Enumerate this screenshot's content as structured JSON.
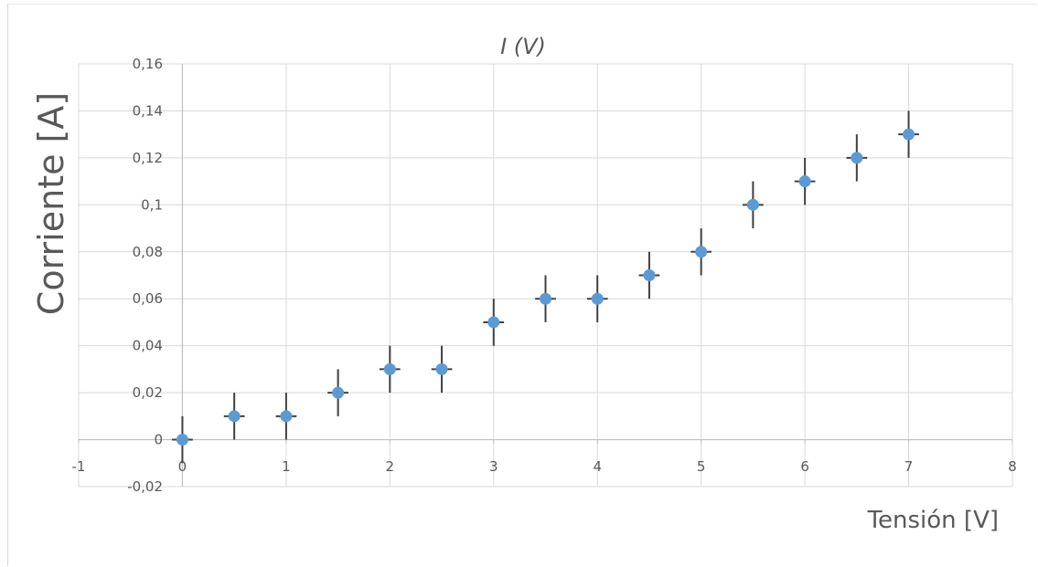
{
  "chart_data": {
    "type": "scatter",
    "title": "I (V)",
    "xlabel": "Tensión [V]",
    "ylabel": "Corriente [A]",
    "xlim": [
      -1,
      8
    ],
    "ylim": [
      -0.02,
      0.16
    ],
    "grid": true,
    "legend": "none",
    "x_ticks": [
      "-1",
      "0",
      "1",
      "2",
      "3",
      "4",
      "5",
      "6",
      "7",
      "8"
    ],
    "y_ticks": [
      "-0,02",
      "0",
      "0,02",
      "0,04",
      "0,06",
      "0,08",
      "0,1",
      "0,12",
      "0,14",
      "0,16"
    ],
    "series": [
      {
        "x": [
          0,
          0.5,
          1,
          1.5,
          2,
          2.5,
          3,
          3.5,
          4,
          4.5,
          5,
          5.5,
          6,
          6.5,
          7
        ],
        "y": [
          0,
          0.01,
          0.01,
          0.02,
          0.03,
          0.03,
          0.05,
          0.06,
          0.06,
          0.07,
          0.08,
          0.1,
          0.11,
          0.12,
          0.13
        ],
        "y_error": 0.01,
        "x_error": 0.1,
        "color": "#5b9bd5"
      }
    ],
    "errorbar_color": "#404040",
    "grid_color": "#d9d9d9",
    "axis_color": "#bfbfbf"
  }
}
